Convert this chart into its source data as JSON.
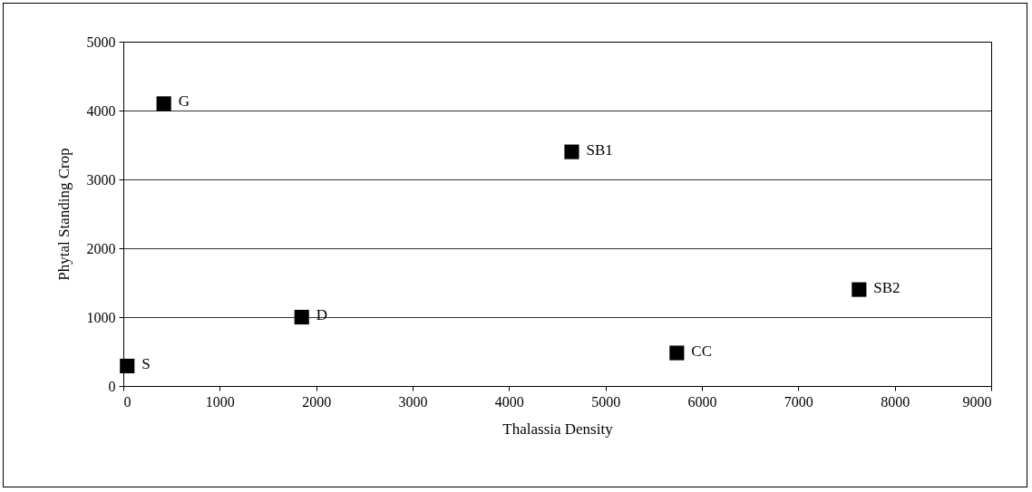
{
  "chart_data": {
    "type": "scatter",
    "xlabel": "Thalassia Density",
    "ylabel": "Phytal Standing Crop",
    "series": [
      {
        "color": "#000000",
        "x": [
          40,
          420,
          1850,
          4650,
          5740,
          7630
        ],
        "values": [
          290,
          4100,
          1000,
          3400,
          480,
          1400
        ]
      }
    ],
    "annotations": [
      {
        "text": "S",
        "x": 40,
        "y": 290
      },
      {
        "text": "G",
        "x": 420,
        "y": 4100
      },
      {
        "text": "D",
        "x": 1850,
        "y": 1000
      },
      {
        "text": "SB1",
        "x": 4650,
        "y": 3400
      },
      {
        "text": "CC",
        "x": 5740,
        "y": 480
      },
      {
        "text": "SB2",
        "x": 7630,
        "y": 1400
      }
    ],
    "xlim": [
      0,
      9000
    ],
    "xticks": [
      0,
      1000,
      2000,
      3000,
      4000,
      5000,
      6000,
      7000,
      8000,
      9000
    ],
    "ylim": [
      0,
      5000
    ],
    "yticks": [
      0,
      1000,
      2000,
      3000,
      4000,
      5000
    ],
    "grid": "y",
    "marker": "square"
  }
}
